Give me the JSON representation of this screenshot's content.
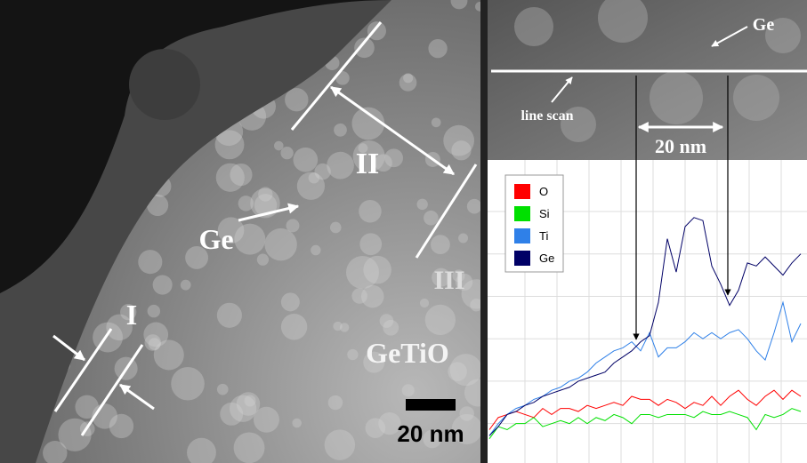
{
  "chart_data": {
    "type": "line",
    "x": [
      0,
      1,
      2,
      3,
      4,
      5,
      6,
      7,
      8,
      9,
      10,
      11,
      12,
      13,
      14,
      15,
      16,
      17,
      18,
      19,
      20,
      21,
      22,
      23,
      24,
      25,
      26,
      27,
      28,
      29,
      30,
      31,
      32,
      33,
      34,
      35
    ],
    "xlim": [
      -0.2,
      35.7
    ],
    "ylim": [
      0,
      100
    ],
    "xticks": [
      4,
      7.6,
      11.2,
      14.8,
      18.4,
      22,
      25.6,
      29.2,
      32.8
    ],
    "yticks": [
      13,
      27,
      41,
      55,
      69,
      83
    ],
    "grid": true,
    "legend": "top-left",
    "series": [
      {
        "name": "O",
        "color": "#ff0000",
        "values": [
          11,
          15,
          16,
          17,
          16,
          15,
          18,
          16,
          18,
          18,
          17,
          19,
          18,
          19,
          20,
          19,
          22,
          21,
          21,
          19,
          21,
          20,
          18,
          20,
          19,
          22,
          19,
          22,
          24,
          21,
          19,
          22,
          24,
          21,
          24,
          22
        ]
      },
      {
        "name": "Si",
        "color": "#00e000",
        "values": [
          8,
          12,
          11,
          13,
          13,
          15,
          12,
          13,
          14,
          13,
          15,
          13,
          15,
          14,
          16,
          15,
          13,
          16,
          16,
          15,
          16,
          16,
          16,
          15,
          17,
          16,
          16,
          17,
          16,
          15,
          11,
          16,
          15,
          16,
          18,
          17
        ]
      },
      {
        "name": "Ti",
        "color": "#2f80e8",
        "values": [
          9,
          13,
          16,
          18,
          19,
          21,
          22,
          24,
          25,
          27,
          28,
          30,
          33,
          35,
          37,
          38,
          40,
          37,
          43,
          35,
          38,
          38,
          40,
          43,
          41,
          43,
          41,
          43,
          44,
          41,
          37,
          34,
          43,
          53,
          40,
          46
        ]
      },
      {
        "name": "Ge",
        "color": "#000066",
        "values": [
          9,
          12,
          16,
          17,
          19,
          20,
          22,
          23,
          24,
          25,
          27,
          28,
          29,
          30,
          33,
          35,
          37,
          40,
          42,
          53,
          74,
          63,
          78,
          81,
          80,
          65,
          59,
          52,
          57,
          66,
          65,
          68,
          65,
          62,
          66,
          69
        ]
      }
    ]
  },
  "micrograph": {
    "labels": [
      "I",
      "II",
      "III",
      "Ge",
      "GeTiO"
    ],
    "scale_bar": "20 nm"
  },
  "inset": {
    "ge": "Ge",
    "line_scan": "line scan",
    "scale": "20 nm"
  }
}
